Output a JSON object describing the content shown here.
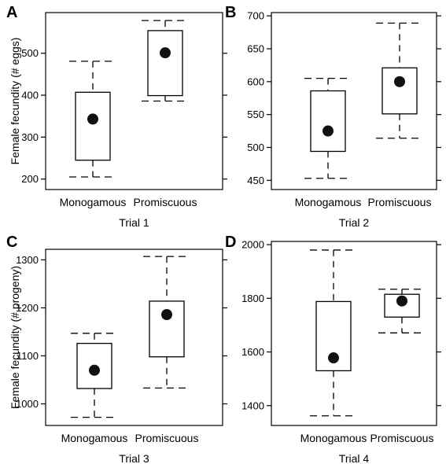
{
  "chart_data": [
    {
      "panel": "A",
      "type": "boxplot",
      "ylabel": "Female fecundity (# eggs)",
      "xlabel": "Trial 1",
      "categories": [
        "Monogamous",
        "Promiscuous"
      ],
      "yticks": [
        200,
        300,
        400,
        500
      ],
      "ylim": [
        175,
        597
      ],
      "boxes": [
        {
          "whisker_low": 205,
          "q1": 245,
          "q3": 407,
          "whisker_high": 481,
          "mean": 343
        },
        {
          "whisker_low": 386,
          "q1": 399,
          "q3": 554,
          "whisker_high": 578,
          "mean": 501
        }
      ]
    },
    {
      "panel": "B",
      "type": "boxplot",
      "ylabel": "",
      "xlabel": "Trial 2",
      "categories": [
        "Monogamous",
        "Promiscuous"
      ],
      "yticks": [
        450,
        500,
        550,
        600,
        650,
        700
      ],
      "ylim": [
        436,
        705
      ],
      "boxes": [
        {
          "whisker_low": 453,
          "q1": 494,
          "q3": 586,
          "whisker_high": 605,
          "mean": 525
        },
        {
          "whisker_low": 514,
          "q1": 551,
          "q3": 621,
          "whisker_high": 689,
          "mean": 600
        }
      ]
    },
    {
      "panel": "C",
      "type": "boxplot",
      "ylabel": "Female fecundity (# progeny)",
      "xlabel": "Trial 3",
      "categories": [
        "Monogamous",
        "Promiscuous"
      ],
      "yticks": [
        1000,
        1100,
        1200,
        1300
      ],
      "ylim": [
        955,
        1322
      ],
      "boxes": [
        {
          "whisker_low": 972,
          "q1": 1032,
          "q3": 1126,
          "whisker_high": 1147,
          "mean": 1070
        },
        {
          "whisker_low": 1033,
          "q1": 1098,
          "q3": 1214,
          "whisker_high": 1307,
          "mean": 1186
        }
      ]
    },
    {
      "panel": "D",
      "type": "boxplot",
      "ylabel": "",
      "xlabel": "Trial 4",
      "categories": [
        "Monogamous",
        "Promiscuous"
      ],
      "yticks": [
        1400,
        1600,
        1800,
        2000
      ],
      "ylim": [
        1326,
        2012
      ],
      "boxes": [
        {
          "whisker_low": 1362,
          "q1": 1530,
          "q3": 1788,
          "whisker_high": 1980,
          "mean": 1578
        },
        {
          "whisker_low": 1671,
          "q1": 1730,
          "q3": 1815,
          "whisker_high": 1834,
          "mean": 1790
        }
      ]
    }
  ]
}
